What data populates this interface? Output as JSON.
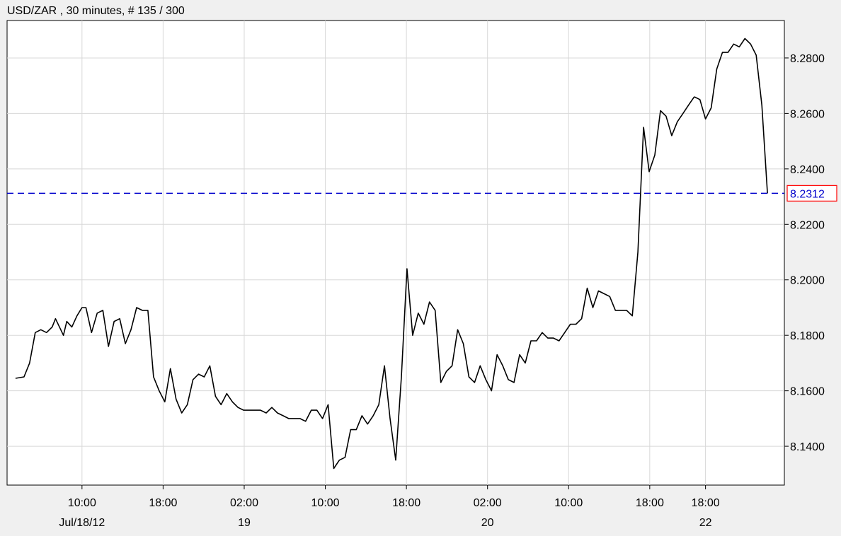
{
  "header": {
    "title": "USD/ZAR , 30 minutes, # 135 / 300"
  },
  "colors": {
    "line": "#000000",
    "grid": "#d8d8d8",
    "current_line": "#0000cc",
    "current_box": "#ff0000",
    "plot_bg": "#ffffff",
    "page_bg": "#f0f0f0"
  },
  "chart_data": {
    "type": "line",
    "title": "USD/ZAR , 30 minutes, # 135 / 300",
    "instrument": "USD/ZAR",
    "interval": "30 minutes",
    "ylim": [
      8.126,
      8.2935
    ],
    "xlim": [
      0,
      138
    ],
    "grid": true,
    "y_axis_side": "right",
    "y_ticks": [
      "8.1400",
      "8.1600",
      "8.1800",
      "8.2000",
      "8.2200",
      "8.2400",
      "8.2600",
      "8.2800"
    ],
    "y_tick_values": [
      8.14,
      8.16,
      8.18,
      8.2,
      8.22,
      8.24,
      8.26,
      8.28
    ],
    "x_ticks": [
      {
        "index": 13.3,
        "time": "10:00",
        "date": "Jul/18/12"
      },
      {
        "index": 27.7,
        "time": "18:00",
        "date": ""
      },
      {
        "index": 42.1,
        "time": "02:00",
        "date": "19"
      },
      {
        "index": 56.5,
        "time": "10:00",
        "date": ""
      },
      {
        "index": 70.9,
        "time": "18:00",
        "date": ""
      },
      {
        "index": 85.3,
        "time": "02:00",
        "date": "20"
      },
      {
        "index": 99.7,
        "time": "10:00",
        "date": ""
      },
      {
        "index": 114.1,
        "time": "18:00",
        "date": ""
      },
      {
        "index": 124.0,
        "time": "18:00",
        "date": "22"
      }
    ],
    "current_value": 8.2312,
    "current_label": "8.2312",
    "series": [
      {
        "x": [
          1.5,
          3.0,
          4.0,
          5.0,
          6.0,
          7.0,
          8.0,
          8.6,
          10.0,
          10.6,
          11.5,
          12.4,
          13.3,
          14.0,
          15.0,
          16.0,
          17.0,
          18.0,
          19.0,
          20.0,
          21.0,
          22.0,
          23.0,
          24.0,
          25.0,
          26.0,
          27.0,
          28.0,
          29.0,
          30.0,
          31.0,
          32.0,
          33.0,
          34.0,
          35.0,
          36.0,
          37.0,
          38.0,
          39.0,
          40.0,
          41.0,
          42.0,
          43.0,
          44.0,
          45.0,
          46.0,
          47.0,
          48.0,
          49.0,
          50.0,
          51.0,
          52.0,
          53.0,
          54.0,
          55.0,
          56.0,
          57.0,
          58.0,
          59.0,
          60.0,
          61.0,
          62.0,
          63.0,
          64.0,
          65.0,
          66.0,
          67.0,
          68.0,
          69.0,
          70.0,
          71.0,
          72.0,
          73.0,
          74.0,
          75.0,
          76.0,
          77.0,
          78.0,
          79.0,
          80.0,
          81.0,
          82.0,
          83.0,
          84.0,
          85.0,
          86.0,
          87.0,
          88.0,
          89.0,
          90.0,
          91.0,
          92.0,
          93.0,
          94.0,
          95.0,
          96.0,
          97.0,
          98.0,
          99.0,
          100.0,
          101.0,
          102.0,
          103.0,
          104.0,
          105.0,
          106.0,
          107.0,
          108.0,
          109.0,
          110.0,
          111.0,
          112.0,
          113.0,
          114.0,
          115.0,
          116.0,
          117.0,
          118.0,
          119.0,
          120.0,
          121.0,
          122.0
        ],
        "y": [
          8.1645,
          8.165,
          8.17,
          8.181,
          8.182,
          8.181,
          8.183,
          8.186,
          8.18,
          8.185,
          8.183,
          8.187,
          8.19,
          8.19,
          8.181,
          8.188,
          8.189,
          8.176,
          8.185,
          8.186,
          8.177,
          8.182,
          8.19,
          8.189,
          8.189,
          8.165,
          8.16,
          8.156,
          8.168,
          8.157,
          8.152,
          8.155,
          8.164,
          8.166,
          8.165,
          8.169,
          8.158,
          8.155,
          8.159,
          8.156,
          8.154,
          8.153,
          8.153,
          8.153,
          8.153,
          8.152,
          8.154,
          8.152,
          8.151,
          8.15,
          8.15,
          8.15,
          8.149,
          8.153,
          8.153,
          8.15,
          8.155,
          8.132,
          8.135,
          8.136,
          8.146,
          8.146,
          8.151,
          8.148,
          8.151,
          8.155,
          8.169,
          8.15,
          8.135,
          8.165,
          8.204,
          8.18,
          8.188,
          8.184,
          8.192,
          8.189,
          8.163,
          8.167,
          8.169,
          8.182,
          8.177,
          8.165,
          8.163,
          8.169,
          8.164,
          8.16,
          8.173,
          8.169,
          8.164,
          8.163,
          8.173,
          8.17,
          8.178,
          8.178,
          8.181,
          8.179,
          8.179,
          8.178,
          8.181,
          8.184,
          8.184,
          8.186,
          8.197,
          8.19,
          8.196,
          8.195,
          8.194,
          8.189,
          8.189,
          8.189,
          8.187,
          8.21,
          8.255,
          8.239,
          8.245,
          8.261,
          8.259,
          8.252,
          8.257,
          8.26,
          8.263,
          8.266
        ]
      },
      {
        "x": [
          123.0,
          124.0,
          125.0,
          126.0,
          127.0,
          128.0,
          129.0,
          130.0,
          131.0,
          132.0,
          133.0,
          134.0,
          135.0
        ],
        "y": [
          8.265,
          8.258,
          8.262,
          8.276,
          8.282,
          8.282,
          8.285,
          8.284,
          8.287,
          8.285,
          8.281,
          8.263,
          8.2312
        ]
      }
    ]
  }
}
